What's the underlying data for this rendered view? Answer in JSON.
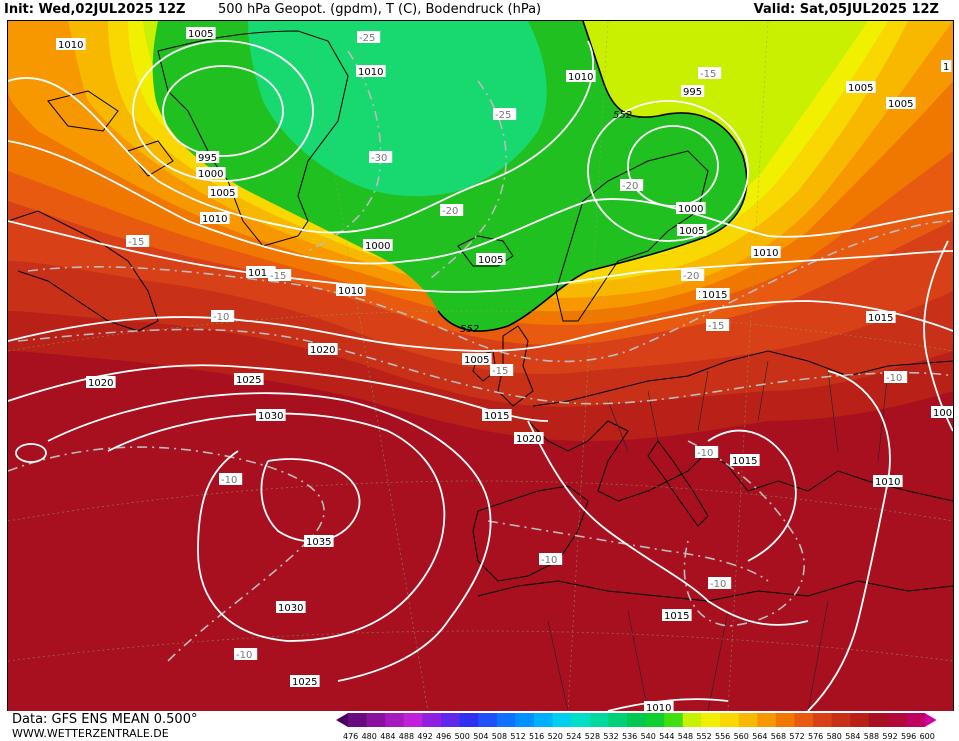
{
  "header": {
    "init": "Init: Wed,02JUL2025 12Z",
    "title": "500 hPa Geopot. (gpdm), T (C), Bodendruck (hPa)",
    "valid": "Valid: Sat,05JUL2025 12Z"
  },
  "footer": {
    "data": "Data: GFS ENS MEAN 0.500°",
    "site": "WWW.WETTERZENTRALE.DE"
  },
  "legend": {
    "values": [
      "476",
      "480",
      "484",
      "488",
      "492",
      "496",
      "500",
      "504",
      "508",
      "512",
      "516",
      "520",
      "524",
      "528",
      "532",
      "536",
      "540",
      "544",
      "548",
      "552",
      "556",
      "560",
      "564",
      "568",
      "572",
      "576",
      "580",
      "584",
      "588",
      "592",
      "596",
      "600"
    ],
    "colors": [
      "#4a0060",
      "#6a0a80",
      "#8a10a0",
      "#a818c0",
      "#c020d8",
      "#9020e0",
      "#6028e8",
      "#3030f0",
      "#2050f8",
      "#1070ff",
      "#0090ff",
      "#00b0ff",
      "#00d0f0",
      "#00e0c8",
      "#00d8a0",
      "#00d078",
      "#00c850",
      "#10d030",
      "#40e010",
      "#c8f000",
      "#f0f000",
      "#f8d800",
      "#f8b800",
      "#f89800",
      "#f07800",
      "#e85a10",
      "#d84018",
      "#c83018",
      "#b82018",
      "#a81020",
      "#b00838",
      "#c00060",
      "#d000a0"
    ]
  },
  "map": {
    "colors": {
      "c548": "#10d030",
      "c552": "#c8f000",
      "c556": "#f0f000",
      "c560": "#f8d800",
      "c564": "#f8b800",
      "c568": "#f89800",
      "c572": "#f07800",
      "c576": "#e85a10",
      "c580": "#d84018",
      "c584": "#c83018",
      "c588": "#b82018",
      "c592": "#a81020",
      "c596": "#b00838",
      "green_dark": "#20c020",
      "green_teal": "#18d870"
    },
    "pressure_labels": [
      {
        "id": "p1",
        "text": "1010"
      },
      {
        "id": "p2",
        "text": "1005"
      },
      {
        "id": "p3",
        "text": "1010"
      },
      {
        "id": "p4",
        "text": "1010"
      },
      {
        "id": "p5",
        "text": "995"
      },
      {
        "id": "p6",
        "text": "1005"
      },
      {
        "id": "p7",
        "text": "995"
      },
      {
        "id": "p8",
        "text": "1000"
      },
      {
        "id": "p9",
        "text": "1005"
      },
      {
        "id": "p10",
        "text": "1010"
      },
      {
        "id": "p11",
        "text": "1000"
      },
      {
        "id": "p12",
        "text": "1005"
      },
      {
        "id": "p13",
        "text": "1000"
      },
      {
        "id": "p14",
        "text": "1005"
      },
      {
        "id": "p15",
        "text": "1010"
      },
      {
        "id": "p16",
        "text": "1015"
      },
      {
        "id": "p17",
        "text": "1010"
      },
      {
        "id": "p18",
        "text": "1015"
      },
      {
        "id": "p19",
        "text": "1020"
      },
      {
        "id": "p20",
        "text": "1020"
      },
      {
        "id": "p21",
        "text": "1025"
      },
      {
        "id": "p22",
        "text": "1005"
      },
      {
        "id": "p23",
        "text": "1015"
      },
      {
        "id": "p24",
        "text": "1020"
      },
      {
        "id": "p25",
        "text": "1030"
      },
      {
        "id": "p26",
        "text": "1035"
      },
      {
        "id": "p27",
        "text": "1030"
      },
      {
        "id": "p28",
        "text": "1025"
      },
      {
        "id": "p29",
        "text": "1015"
      },
      {
        "id": "p30",
        "text": "1015"
      },
      {
        "id": "p31",
        "text": "1015"
      },
      {
        "id": "p32",
        "text": "1010"
      },
      {
        "id": "p33",
        "text": "1010"
      },
      {
        "id": "p34",
        "text": "1005"
      },
      {
        "id": "p35",
        "text": "100"
      },
      {
        "id": "p36",
        "text": "1"
      },
      {
        "id": "p37",
        "text": "1015"
      }
    ],
    "temp_labels": [
      {
        "id": "t1",
        "text": "-25"
      },
      {
        "id": "t2",
        "text": "-25"
      },
      {
        "id": "t3",
        "text": "-30"
      },
      {
        "id": "t4",
        "text": "-20"
      },
      {
        "id": "t5",
        "text": "-15"
      },
      {
        "id": "t6",
        "text": "-20"
      },
      {
        "id": "t7",
        "text": "-15"
      },
      {
        "id": "t8",
        "text": "-15"
      },
      {
        "id": "t9",
        "text": "-10"
      },
      {
        "id": "t10",
        "text": "-20"
      },
      {
        "id": "t11",
        "text": "-15"
      },
      {
        "id": "t12",
        "text": "-15"
      },
      {
        "id": "t13",
        "text": "-10"
      },
      {
        "id": "t14",
        "text": "-10"
      },
      {
        "id": "t15",
        "text": "-10"
      },
      {
        "id": "t16",
        "text": "-10"
      },
      {
        "id": "t17",
        "text": "-10"
      },
      {
        "id": "t18",
        "text": "-10"
      }
    ],
    "height_labels": [
      {
        "id": "h1",
        "text": "552"
      },
      {
        "id": "h2",
        "text": "552"
      }
    ]
  }
}
